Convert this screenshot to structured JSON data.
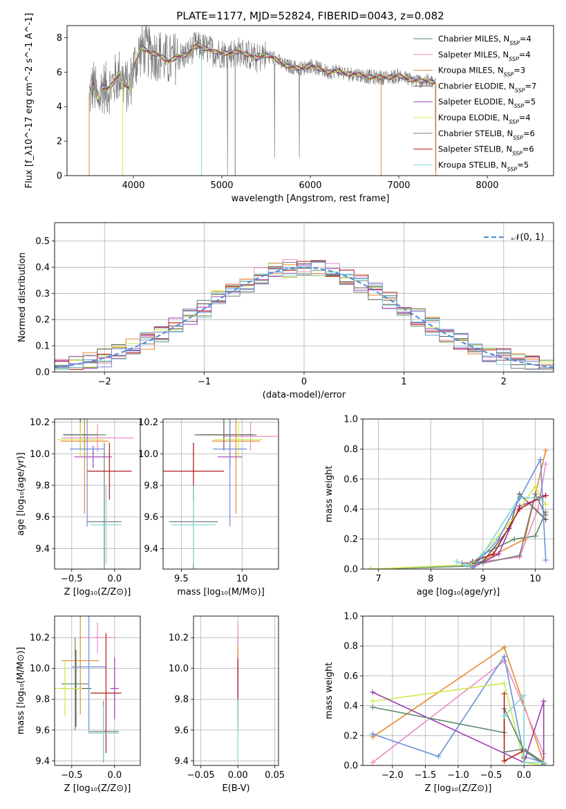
{
  "colors": {
    "Chabrier MILES": "#5b8a6b",
    "Salpeter MILES": "#e98bc4",
    "Kroupa MILES": "#e8892c",
    "Chabrier ELODIE": "#595959",
    "Salpeter ELODIE": "#9a3cb2",
    "Kroupa ELODIE": "#cfe84a",
    "Chabrier STELIB": "#7a7a7a",
    "Salpeter STELIB": "#b21b1b",
    "Kroupa STELIB": "#7fd6d6",
    "extra1": "#6a8fd8",
    "normal": "#5b8fd6"
  },
  "chart_data": [
    {
      "type": "line",
      "title": "PLATE=1177, MJD=52824, FIBERID=0043, z=0.082",
      "xlabel": "wavelength [Angstrom, rest frame]",
      "ylabel": "Flux [f_λ10^-17 erg cm^-2 s^-1 A^-1]",
      "xlim": [
        3250,
        8750
      ],
      "ylim": [
        0,
        8.7
      ],
      "xticks": [
        4000,
        5000,
        6000,
        7000,
        8000
      ],
      "yticks": [
        0,
        2,
        4,
        6,
        8
      ],
      "legend_placement": "upper-right",
      "legend": [
        "Chabrier MILES, N_SSP=4",
        "Salpeter MILES, N_SSP=4",
        "Kroupa MILES, N_SSP=3",
        "Chabrier ELODIE, N_SSP=7",
        "Salpeter ELODIE, N_SSP=5",
        "Kroupa ELODIE, N_SSP=4",
        "Chabrier STELIB, N_SSP=6",
        "Salpeter STELIB, N_SSP=6",
        "Kroupa STELIB, N_SSP=5"
      ],
      "model_continuum": {
        "x": [
          3500,
          3550,
          3600,
          3650,
          3700,
          3750,
          3800,
          3850,
          3900,
          3950,
          4000,
          4050,
          4100,
          4200,
          4300,
          4400,
          4500,
          4600,
          4700,
          4800,
          4900,
          5000,
          5100,
          5200,
          5300,
          5400,
          5500,
          5600,
          5700,
          5800,
          5900,
          6000,
          6100,
          6200,
          6300,
          6400,
          6500,
          6600,
          6700,
          6800,
          6900,
          7000,
          7100,
          7200,
          7300,
          7400
        ],
        "y": [
          4.6,
          5.3,
          4.2,
          5.2,
          5.0,
          5.2,
          5.6,
          5.9,
          5.3,
          5.0,
          6.2,
          6.9,
          7.4,
          7.1,
          7.0,
          6.6,
          6.9,
          7.0,
          7.5,
          7.4,
          7.2,
          7.1,
          7.1,
          7.2,
          7.0,
          6.8,
          7.0,
          6.8,
          6.4,
          6.3,
          6.2,
          6.4,
          6.2,
          6.0,
          6.1,
          5.9,
          5.9,
          5.8,
          5.7,
          5.7,
          5.7,
          5.8,
          5.6,
          5.5,
          5.5,
          5.4
        ]
      }
    },
    {
      "type": "line",
      "xlabel": "(data-model)/error",
      "ylabel": "Normed distribution",
      "xlim": [
        -2.5,
        2.5
      ],
      "ylim": [
        0,
        0.57
      ],
      "xticks": [
        -2,
        -1,
        0,
        1,
        2
      ],
      "yticks": [
        0,
        0.1,
        0.2,
        0.3,
        0.4,
        0.5
      ],
      "legend": [
        "𝒩(0, 1)"
      ],
      "legend_placement": "upper-right",
      "series": [
        {
          "name": "𝒩(0, 1)",
          "style": "dashed",
          "function": "gaussian",
          "mu": 0,
          "sigma": 1
        }
      ]
    },
    {
      "type": "scatter",
      "xlabel": "Z [log₁₀(Z/Z⊙)]",
      "ylabel": "age  [log₁₀(age/yr)]",
      "xlim": [
        -0.7,
        0.3
      ],
      "ylim": [
        9.27,
        10.22
      ],
      "xticks": [
        -0.5,
        0.0
      ],
      "xtick_labels": [
        "−0.5",
        "0.0"
      ],
      "yticks": [
        9.4,
        9.6,
        9.8,
        10.0,
        10.2
      ],
      "points": [
        {
          "x": -0.35,
          "y": 10.12,
          "xerr": 0.25,
          "yerr": 0.1,
          "color": "Chabrier MILES"
        },
        {
          "x": -0.2,
          "y": 10.1,
          "xerr": 0.42,
          "yerr": 0.09,
          "color": "Salpeter MILES"
        },
        {
          "x": -0.35,
          "y": 10.08,
          "xerr": 0.28,
          "yerr": 0.46,
          "color": "Kroupa MILES"
        },
        {
          "x": -0.4,
          "y": 10.12,
          "xerr": 0.2,
          "yerr": 0.1,
          "color": "Chabrier ELODIE"
        },
        {
          "x": -0.25,
          "y": 9.98,
          "xerr": 0.22,
          "yerr": 0.07,
          "color": "Salpeter ELODIE"
        },
        {
          "x": -0.4,
          "y": 10.09,
          "xerr": 0.27,
          "yerr": 0.11,
          "color": "Kroupa ELODIE"
        },
        {
          "x": -0.12,
          "y": 9.57,
          "xerr": 0.2,
          "yerr": 0.5,
          "color": "Chabrier STELIB"
        },
        {
          "x": -0.06,
          "y": 9.89,
          "xerr": 0.26,
          "yerr": 0.18,
          "color": "Salpeter STELIB"
        },
        {
          "x": -0.1,
          "y": 9.55,
          "xerr": 0.18,
          "yerr": 0.25,
          "color": "Kroupa STELIB"
        },
        {
          "x": -0.32,
          "y": 10.03,
          "xerr": 0.2,
          "yerr": 0.49,
          "color": "extra1"
        }
      ]
    },
    {
      "type": "scatter",
      "xlabel": "mass [log₁₀(M/M⊙)]",
      "ylabel": "",
      "xlim": [
        9.35,
        10.3
      ],
      "ylim": [
        9.27,
        10.22
      ],
      "xticks": [
        9.5,
        10.0
      ],
      "yticks": [
        9.4,
        9.6,
        9.8,
        10.0,
        10.2
      ],
      "points": [
        {
          "x": 9.9,
          "y": 10.12,
          "xerr": 0.22,
          "yerr": 0.1,
          "color": "Chabrier MILES"
        },
        {
          "x": 10.07,
          "y": 10.11,
          "xerr": 0.22,
          "yerr": 0.09,
          "color": "Salpeter MILES"
        },
        {
          "x": 9.95,
          "y": 10.08,
          "xerr": 0.2,
          "yerr": 0.46,
          "color": "Kroupa MILES"
        },
        {
          "x": 9.85,
          "y": 10.12,
          "xerr": 0.24,
          "yerr": 0.1,
          "color": "Chabrier ELODIE"
        },
        {
          "x": 9.9,
          "y": 9.98,
          "xerr": 0.1,
          "yerr": 0.07,
          "color": "Salpeter ELODIE"
        },
        {
          "x": 9.97,
          "y": 10.09,
          "xerr": 0.2,
          "yerr": 0.11,
          "color": "Kroupa ELODIE"
        },
        {
          "x": 9.6,
          "y": 9.57,
          "xerr": 0.2,
          "yerr": 0.5,
          "color": "Chabrier STELIB"
        },
        {
          "x": 9.6,
          "y": 9.89,
          "xerr": 0.25,
          "yerr": 0.18,
          "color": "Salpeter STELIB"
        },
        {
          "x": 9.6,
          "y": 9.55,
          "xerr": 0.18,
          "yerr": 0.25,
          "color": "Kroupa STELIB"
        },
        {
          "x": 9.9,
          "y": 10.03,
          "xerr": 0.14,
          "yerr": 0.49,
          "color": "extra1"
        }
      ]
    },
    {
      "type": "line",
      "xlabel": "age  [log₁₀(age/yr)]",
      "ylabel": "mass weight",
      "xlim": [
        6.7,
        10.35
      ],
      "ylim": [
        0,
        1.0
      ],
      "xticks": [
        7,
        8,
        9,
        10
      ],
      "yticks": [
        0.0,
        0.2,
        0.4,
        0.6,
        0.8,
        1.0
      ],
      "marker": "+",
      "series": [
        {
          "color": "Chabrier MILES",
          "x": [
            6.85,
            8.8,
            9.0,
            9.6,
            10.0,
            10.2
          ],
          "y": [
            0.0,
            0.02,
            0.1,
            0.2,
            0.22,
            0.38
          ]
        },
        {
          "color": "Salpeter MILES",
          "x": [
            8.7,
            9.0,
            9.7,
            10.05,
            10.2
          ],
          "y": [
            0.03,
            0.05,
            0.08,
            0.4,
            0.7
          ]
        },
        {
          "color": "Kroupa MILES",
          "x": [
            8.8,
            9.8,
            10.2
          ],
          "y": [
            0.02,
            0.2,
            0.79
          ]
        },
        {
          "color": "Chabrier ELODIE",
          "x": [
            8.7,
            9.0,
            9.5,
            9.7,
            10.2
          ],
          "y": [
            0.02,
            0.05,
            0.27,
            0.5,
            0.33
          ]
        },
        {
          "color": "Salpeter ELODIE",
          "x": [
            8.8,
            9.3,
            9.7,
            10.1,
            10.2
          ],
          "y": [
            0.01,
            0.1,
            0.42,
            0.47,
            0.49
          ]
        },
        {
          "color": "Kroupa ELODIE",
          "x": [
            6.85,
            8.8,
            9.5,
            10.0,
            10.2
          ],
          "y": [
            0.0,
            0.03,
            0.3,
            0.55,
            0.43
          ]
        },
        {
          "color": "Chabrier STELIB",
          "x": [
            8.6,
            9.0,
            9.7,
            10.0,
            10.2
          ],
          "y": [
            0.04,
            0.04,
            0.09,
            0.5,
            0.36
          ]
        },
        {
          "color": "Salpeter STELIB",
          "x": [
            8.8,
            9.2,
            9.7,
            10.1,
            10.2
          ],
          "y": [
            0.05,
            0.1,
            0.4,
            0.48,
            0.49
          ]
        },
        {
          "color": "Kroupa STELIB",
          "x": [
            8.5,
            8.7,
            9.0,
            9.7,
            10.1
          ],
          "y": [
            0.05,
            0.02,
            0.1,
            0.48,
            0.47
          ]
        },
        {
          "color": "extra1",
          "x": [
            8.8,
            9.3,
            9.7,
            10.1,
            10.2
          ],
          "y": [
            0.01,
            0.2,
            0.47,
            0.73,
            0.06
          ]
        }
      ]
    },
    {
      "type": "scatter",
      "xlabel": "Z [log₁₀(Z/Z⊙)]",
      "ylabel": "mass [log₁₀(M/M⊙)]",
      "xlim": [
        -0.7,
        0.3
      ],
      "ylim": [
        9.37,
        10.34
      ],
      "xticks": [
        -0.5,
        0.0
      ],
      "xtick_labels": [
        "−0.5",
        "0.0"
      ],
      "yticks": [
        9.4,
        9.6,
        9.8,
        10.0,
        10.2
      ],
      "points": [
        {
          "x": -0.46,
          "y": 9.9,
          "xerr": 0.16,
          "yerr": 0.3,
          "color": "Chabrier MILES"
        },
        {
          "x": -0.2,
          "y": 10.2,
          "xerr": 0.22,
          "yerr": 0.1,
          "color": "Salpeter MILES"
        },
        {
          "x": -0.4,
          "y": 10.05,
          "xerr": 0.22,
          "yerr": 0.35,
          "color": "Kroupa MILES"
        },
        {
          "x": -0.45,
          "y": 9.87,
          "xerr": 0.18,
          "yerr": 0.25,
          "color": "Chabrier ELODIE"
        },
        {
          "x": 0.0,
          "y": 9.87,
          "xerr": 0.05,
          "yerr": 0.2,
          "color": "Salpeter ELODIE"
        },
        {
          "x": -0.58,
          "y": 9.87,
          "xerr": 0.2,
          "yerr": 0.18,
          "color": "Kroupa ELODIE"
        },
        {
          "x": -0.13,
          "y": 9.59,
          "xerr": 0.18,
          "yerr": 0.2,
          "color": "Chabrier STELIB"
        },
        {
          "x": -0.1,
          "y": 9.84,
          "xerr": 0.18,
          "yerr": 0.39,
          "color": "Salpeter STELIB"
        },
        {
          "x": -0.13,
          "y": 9.58,
          "xerr": 0.18,
          "yerr": 0.18,
          "color": "Kroupa STELIB"
        },
        {
          "x": -0.3,
          "y": 10.01,
          "xerr": 0.2,
          "yerr": 0.41,
          "color": "extra1"
        }
      ]
    },
    {
      "type": "scatter",
      "xlabel": "E(B-V)",
      "ylabel": "",
      "xlim": [
        -0.06,
        0.055
      ],
      "ylim": [
        9.37,
        10.34
      ],
      "xticks": [
        -0.05,
        0.0,
        0.05
      ],
      "xtick_labels": [
        "−0.05",
        "0.00",
        "0.05"
      ],
      "yticks": [
        9.4,
        9.6,
        9.8,
        10.0,
        10.2
      ],
      "points": [
        {
          "x": 0.0,
          "y": 9.9,
          "yerr": 0.3,
          "color": "Chabrier MILES"
        },
        {
          "x": 0.0,
          "y": 10.2,
          "yerr": 0.1,
          "color": "Salpeter MILES"
        },
        {
          "x": 0.0,
          "y": 10.05,
          "yerr": 0.1,
          "color": "Kroupa MILES"
        },
        {
          "x": 0.0,
          "y": 9.87,
          "yerr": 0.2,
          "color": "Salpeter ELODIE"
        },
        {
          "x": 0.0,
          "y": 9.84,
          "yerr": 0.22,
          "color": "Salpeter STELIB"
        },
        {
          "x": 0.0,
          "y": 9.6,
          "yerr": 0.2,
          "color": "Kroupa STELIB"
        }
      ]
    },
    {
      "type": "line",
      "xlabel": "Z [log₁₀(Z/Z⊙)]",
      "ylabel": "mass weight",
      "xlim": [
        -2.45,
        0.45
      ],
      "ylim": [
        0,
        1.0
      ],
      "xticks": [
        -2.0,
        -1.5,
        -1.0,
        -0.5,
        0.0
      ],
      "xtick_labels": [
        "−2.0",
        "−1.5",
        "−1.0",
        "−0.5",
        "0.0"
      ],
      "yticks": [
        0.0,
        0.2,
        0.4,
        0.6,
        0.8,
        1.0
      ],
      "marker": "+",
      "series": [
        {
          "color": "Kroupa MILES",
          "x": [
            -2.3,
            -0.3,
            0.3
          ],
          "y": [
            0.19,
            0.79,
            0.02
          ]
        },
        {
          "color": "Salpeter MILES",
          "x": [
            -2.3,
            -0.3,
            0.3
          ],
          "y": [
            0.02,
            0.7,
            0.08
          ]
        },
        {
          "color": "extra1",
          "x": [
            -2.3,
            -1.3,
            -0.3,
            0.0,
            0.3
          ],
          "y": [
            0.21,
            0.06,
            0.73,
            0.06,
            0.02
          ]
        },
        {
          "color": "Kroupa ELODIE",
          "x": [
            -2.3,
            -0.3,
            0.0,
            0.3
          ],
          "y": [
            0.43,
            0.55,
            0.02,
            0.0
          ]
        },
        {
          "color": "Salpeter ELODIE",
          "x": [
            -2.3,
            0.0,
            0.3,
            0.3
          ],
          "y": [
            0.49,
            0.02,
            0.43,
            0.0
          ]
        },
        {
          "color": "Chabrier MILES",
          "x": [
            -2.3,
            -0.3,
            -0.3,
            0.0,
            0.3
          ],
          "y": [
            0.39,
            0.22,
            0.38,
            0.1,
            0.01
          ]
        },
        {
          "color": "Salpeter STELIB",
          "x": [
            -0.3,
            -0.3,
            0.0,
            0.0
          ],
          "y": [
            0.48,
            0.03,
            0.1,
            0.05
          ]
        },
        {
          "color": "Chabrier STELIB",
          "x": [
            -0.3,
            0.0,
            0.3
          ],
          "y": [
            0.09,
            0.11,
            0.02
          ]
        },
        {
          "color": "Kroupa STELIB",
          "x": [
            -0.3,
            0.0,
            0.0,
            0.3
          ],
          "y": [
            0.33,
            0.47,
            0.02,
            0.02
          ]
        }
      ]
    }
  ]
}
